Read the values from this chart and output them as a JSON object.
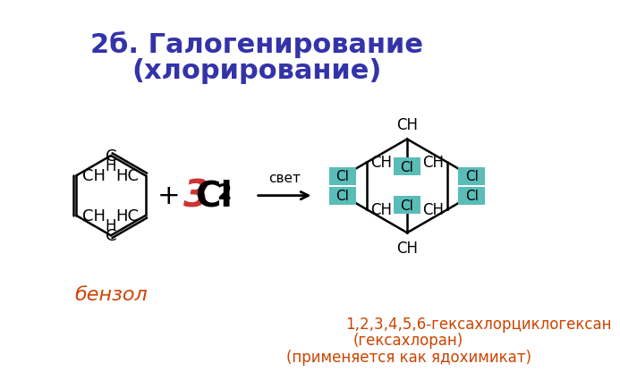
{
  "title_line1": "2б. Галогенирование",
  "title_line2": "(хлорирование)",
  "title_color": "#3333aa",
  "title_fontsize": 22,
  "benzol_label": "бензол",
  "benzol_color": "#cc4400",
  "product_line1": "1,2,3,4,5,6-гексахлорциклогексан",
  "product_line2": "(гексахлоран)",
  "product_line3": "(применяется как ядохимикат)",
  "product_color": "#cc4400",
  "product_fontsize": 13,
  "cl_box_color": "#5abcb9",
  "background": "#ffffff",
  "plus_color": "#000000",
  "arrow_color": "#000000",
  "svet_color": "#000000",
  "bond_color": "#000000",
  "atom_color": "#000000"
}
